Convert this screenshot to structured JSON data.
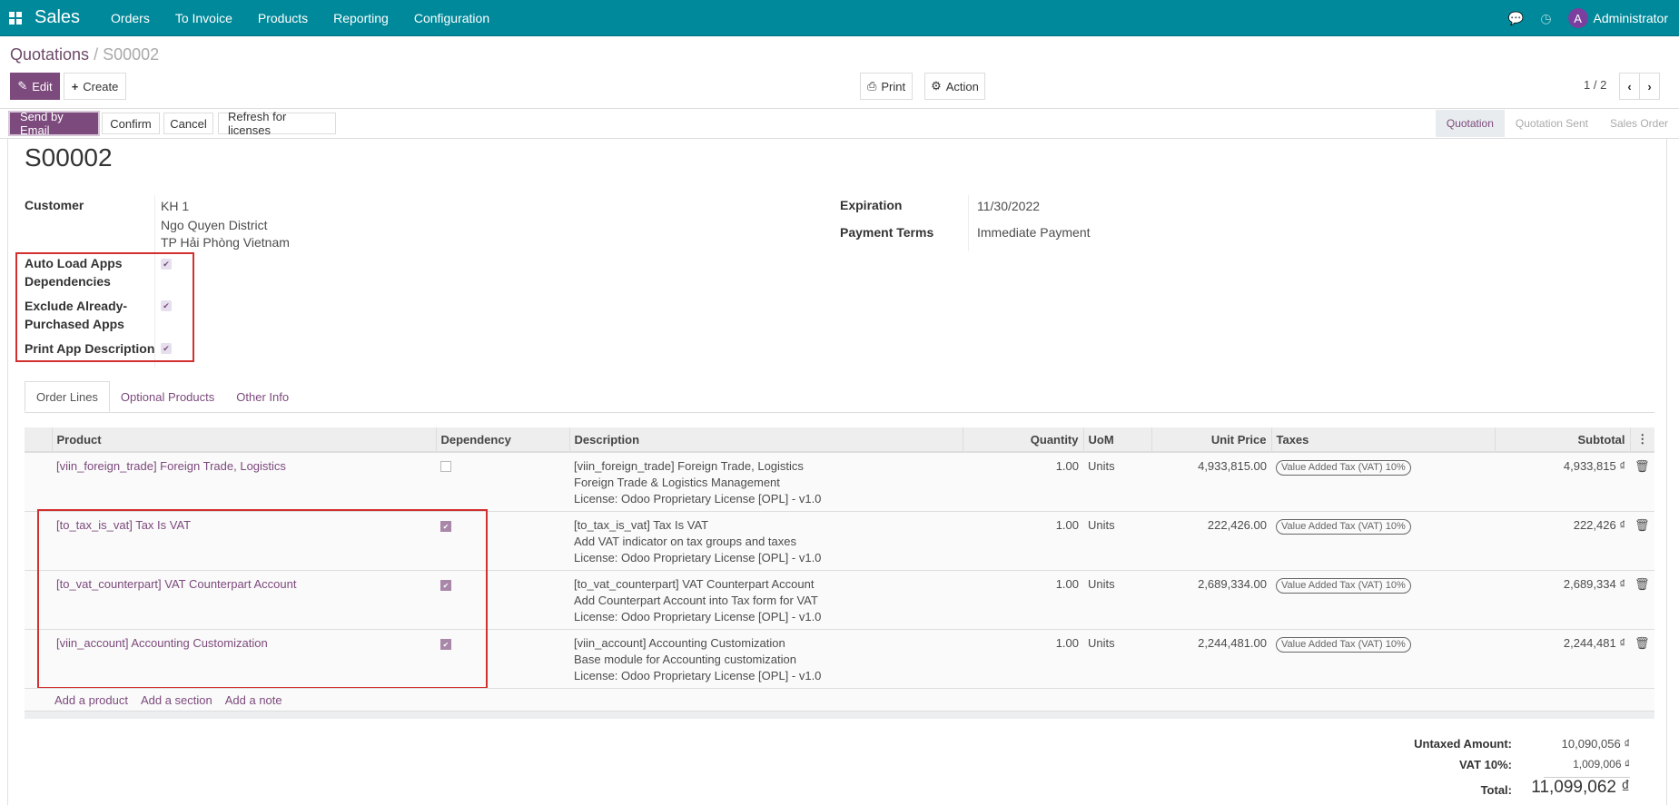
{
  "nav": {
    "app": "Sales",
    "menu": [
      "Orders",
      "To Invoice",
      "Products",
      "Reporting",
      "Configuration"
    ],
    "user": "Administrator",
    "avatar_letter": "A",
    "accent": "#00899a"
  },
  "breadcrumb": {
    "parent": "Quotations",
    "current": "S00002"
  },
  "toolbar": {
    "edit": "Edit",
    "create": "Create",
    "print": "Print",
    "action": "Action",
    "pager": "1 / 2"
  },
  "header_buttons": [
    "Send by Email",
    "Confirm",
    "Cancel",
    "Refresh for licenses"
  ],
  "status": {
    "steps": [
      "Quotation",
      "Quotation Sent",
      "Sales Order"
    ],
    "active": "Quotation"
  },
  "form": {
    "title": "S00002",
    "customer_label": "Customer",
    "customer": [
      "KH 1",
      "Ngo Quyen District",
      "TP Hải Phòng Vietnam"
    ],
    "auto_load_label": "Auto Load Apps Dependencies",
    "auto_load": true,
    "exclude_label": "Exclude Already-Purchased Apps",
    "exclude": true,
    "print_desc_label": "Print App Description",
    "print_desc": true,
    "expiration_label": "Expiration",
    "expiration": "11/30/2022",
    "terms_label": "Payment Terms",
    "terms": "Immediate Payment"
  },
  "tabs": [
    "Order Lines",
    "Optional Products",
    "Other Info"
  ],
  "table": {
    "headers": [
      "Product",
      "Dependency",
      "Description",
      "Quantity",
      "UoM",
      "Unit Price",
      "Taxes",
      "Subtotal"
    ],
    "rows": [
      {
        "product": "[viin_foreign_trade] Foreign Trade, Logistics",
        "dependency": false,
        "description": [
          "[viin_foreign_trade] Foreign Trade, Logistics",
          "Foreign Trade & Logistics Management",
          "License: Odoo Proprietary License [OPL] - v1.0"
        ],
        "qty": "1.00",
        "uom": "Units",
        "price": "4,933,815.00",
        "tax": "Value Added Tax (VAT) 10%",
        "subtotal": "4,933,815 ₫"
      },
      {
        "product": "[to_tax_is_vat] Tax Is VAT",
        "dependency": true,
        "description": [
          "[to_tax_is_vat] Tax Is VAT",
          "Add VAT indicator on tax groups and taxes",
          "License: Odoo Proprietary License [OPL] - v1.0"
        ],
        "qty": "1.00",
        "uom": "Units",
        "price": "222,426.00",
        "tax": "Value Added Tax (VAT) 10%",
        "subtotal": "222,426 ₫"
      },
      {
        "product": "[to_vat_counterpart] VAT Counterpart Account",
        "dependency": true,
        "description": [
          "[to_vat_counterpart] VAT Counterpart Account",
          "Add Counterpart Account into Tax form for VAT",
          "License: Odoo Proprietary License [OPL] - v1.0"
        ],
        "qty": "1.00",
        "uom": "Units",
        "price": "2,689,334.00",
        "tax": "Value Added Tax (VAT) 10%",
        "subtotal": "2,689,334 ₫"
      },
      {
        "product": "[viin_account] Accounting Customization",
        "dependency": true,
        "description": [
          "[viin_account] Accounting Customization",
          "Base module for Accounting customization",
          "License: Odoo Proprietary License [OPL] - v1.0"
        ],
        "qty": "1.00",
        "uom": "Units",
        "price": "2,244,481.00",
        "tax": "Value Added Tax (VAT) 10%",
        "subtotal": "2,244,481 ₫"
      }
    ],
    "add": [
      "Add a product",
      "Add a section",
      "Add a note"
    ]
  },
  "totals": {
    "untaxed_label": "Untaxed Amount:",
    "untaxed": "10,090,056 ₫",
    "vat_label": "VAT 10%:",
    "vat": "1,009,006 ₫",
    "total_label": "Total:",
    "total": "11,099,062 ₫"
  }
}
